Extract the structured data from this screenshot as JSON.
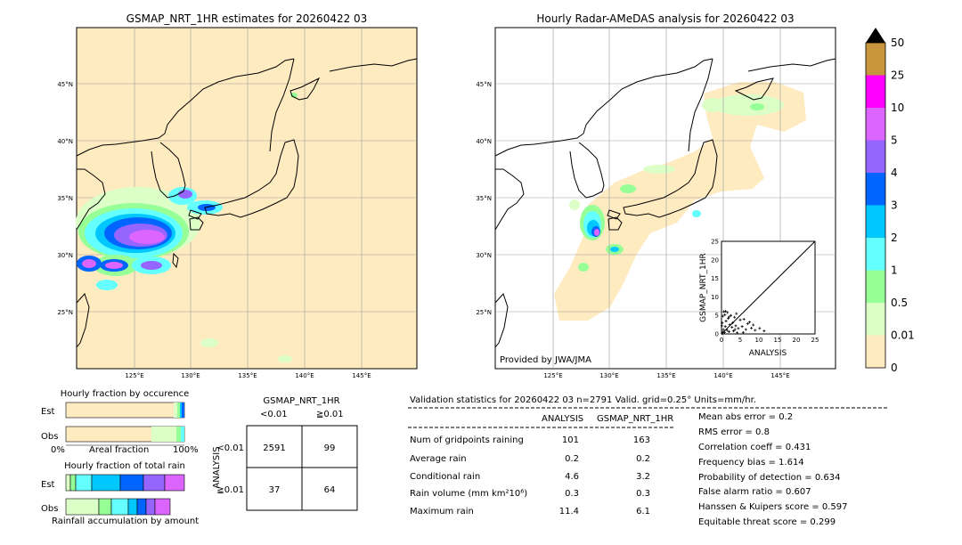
{
  "left_map": {
    "title": "GSMAP_NRT_1HR estimates for 20260422 03",
    "lat_labels": [
      "45°N",
      "40°N",
      "35°N",
      "30°N",
      "25°N"
    ],
    "lon_labels": [
      "125°E",
      "130°E",
      "135°E",
      "140°E",
      "145°E"
    ]
  },
  "right_map": {
    "title": "Hourly Radar-AMeDAS analysis for 20260422 03",
    "lat_labels": [
      "45°N",
      "40°N",
      "35°N",
      "30°N",
      "25°N"
    ],
    "lon_labels": [
      "125°E",
      "130°E",
      "135°E",
      "140°E",
      "145°E"
    ],
    "credit": "Provided by JWA/JMA"
  },
  "colorbar": {
    "levels": [
      "50",
      "25",
      "10",
      "5",
      "4",
      "3",
      "2",
      "1",
      "0.5",
      "0.01",
      "0"
    ],
    "colors": [
      "#c8963c",
      "#ff00ff",
      "#dc64ff",
      "#9664ff",
      "#0064ff",
      "#00c8ff",
      "#64ffff",
      "#96ff96",
      "#dcffc8",
      "#ffebc0"
    ]
  },
  "scatter": {
    "xlabel": "ANALYSIS",
    "ylabel": "GSMAP_NRT_1HR",
    "ticks": [
      "0",
      "5",
      "10",
      "15",
      "20",
      "25"
    ]
  },
  "fraction_occurrence": {
    "title": "Hourly fraction by occurence",
    "row_labels": [
      "Est",
      "Obs"
    ],
    "axis_left": "0%",
    "axis_mid": "Areal fraction",
    "axis_right": "100%"
  },
  "fraction_total": {
    "title": "Hourly fraction of total rain",
    "row_labels": [
      "Est",
      "Obs"
    ],
    "footer": "Rainfall accumulation by amount"
  },
  "contingency": {
    "title": "GSMAP_NRT_1HR",
    "col_labels": [
      "<0.01",
      "≧0.01"
    ],
    "row_labels": [
      "<0.01",
      "≧0.01"
    ],
    "side_label": "ANALYSIS",
    "cells": [
      "2591",
      "99",
      "37",
      "64"
    ]
  },
  "validation": {
    "header": "Validation statistics for 20260422 03  n=2791 Valid. grid=0.25° Units=mm/hr.",
    "col_analysis": "ANALYSIS",
    "col_gsmap": "GSMAP_NRT_1HR",
    "rows": [
      {
        "label": "Num of gridpoints raining",
        "analysis": "101",
        "gsmap": "163"
      },
      {
        "label": "Average rain",
        "analysis": "0.2",
        "gsmap": "0.2"
      },
      {
        "label": "Conditional rain",
        "analysis": "4.6",
        "gsmap": "3.2"
      },
      {
        "label": "Rain volume (mm km²10⁶)",
        "analysis": "0.3",
        "gsmap": "0.3"
      },
      {
        "label": "Maximum rain",
        "analysis": "11.4",
        "gsmap": "6.1"
      }
    ],
    "scores": [
      "Mean abs error =    0.2",
      "RMS error =    0.8",
      "Correlation coeff =  0.431",
      "Frequency bias =  1.614",
      "Probability of detection =  0.634",
      "False alarm ratio =  0.607",
      "Hanssen & Kuipers score =  0.597",
      "Equitable threat score =  0.299"
    ]
  },
  "chart_data": [
    {
      "type": "scatter",
      "xlabel": "ANALYSIS",
      "ylabel": "GSMAP_NRT_1HR",
      "xlim": [
        0,
        25
      ],
      "ylim": [
        0,
        25
      ],
      "points": [
        [
          0.3,
          0.5
        ],
        [
          0.5,
          1.2
        ],
        [
          0.8,
          0.4
        ],
        [
          1.0,
          2.0
        ],
        [
          1.2,
          3.5
        ],
        [
          1.5,
          1.0
        ],
        [
          1.8,
          4.2
        ],
        [
          2.0,
          0.6
        ],
        [
          2.2,
          2.5
        ],
        [
          2.5,
          5.0
        ],
        [
          2.8,
          1.8
        ],
        [
          3.0,
          3.0
        ],
        [
          3.2,
          0.8
        ],
        [
          3.5,
          4.5
        ],
        [
          3.8,
          2.2
        ],
        [
          4.0,
          5.5
        ],
        [
          4.5,
          1.5
        ],
        [
          5.0,
          3.8
        ],
        [
          5.5,
          2.0
        ],
        [
          6.0,
          4.0
        ],
        [
          6.5,
          1.2
        ],
        [
          7.0,
          2.8
        ],
        [
          7.5,
          3.2
        ],
        [
          8.0,
          1.6
        ],
        [
          8.5,
          2.4
        ],
        [
          9.0,
          1.0
        ],
        [
          0.2,
          3.0
        ],
        [
          0.4,
          4.8
        ],
        [
          0.6,
          6.0
        ],
        [
          0.9,
          5.2
        ],
        [
          1.1,
          6.1
        ],
        [
          0.1,
          2.2
        ],
        [
          2.0,
          4.6
        ],
        [
          1.6,
          5.8
        ],
        [
          3.6,
          1.2
        ],
        [
          10.2,
          1.5
        ],
        [
          11.4,
          0.8
        ],
        [
          4.2,
          0.3
        ],
        [
          5.8,
          0.4
        ],
        [
          0.2,
          0.1
        ]
      ]
    },
    {
      "type": "bar",
      "title": "Hourly fraction by occurence",
      "categories": [
        "Est",
        "Obs"
      ],
      "series": [
        {
          "values": [
            0.9416,
            0.9638
          ]
        },
        {
          "values": [
            0.0584,
            0.0362
          ]
        }
      ]
    },
    {
      "type": "table",
      "title": "GSMAP_NRT_1HR",
      "rows": [
        [
          "2591",
          "99"
        ],
        [
          "37",
          "64"
        ]
      ]
    }
  ]
}
